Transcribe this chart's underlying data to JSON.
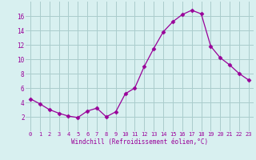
{
  "x": [
    0,
    1,
    2,
    3,
    4,
    5,
    6,
    7,
    8,
    9,
    10,
    11,
    12,
    13,
    14,
    15,
    16,
    17,
    18,
    19,
    20,
    21,
    22,
    23
  ],
  "y": [
    4.5,
    3.8,
    3.0,
    2.5,
    2.1,
    1.9,
    2.8,
    3.2,
    2.0,
    2.7,
    5.2,
    6.0,
    9.0,
    11.5,
    13.8,
    15.2,
    16.2,
    16.8,
    16.3,
    11.8,
    10.2,
    9.2,
    8.0,
    7.1
  ],
  "line_color": "#990099",
  "marker": "D",
  "marker_size": 2.5,
  "bg_color": "#d8f0f0",
  "grid_color": "#aacccc",
  "xlabel": "Windchill (Refroidissement éolien,°C)",
  "xlabel_color": "#990099",
  "tick_color": "#990099",
  "ylim": [
    0,
    18
  ],
  "xlim": [
    -0.5,
    23.5
  ],
  "yticks": [
    2,
    4,
    6,
    8,
    10,
    12,
    14,
    16
  ],
  "xticks": [
    0,
    1,
    2,
    3,
    4,
    5,
    6,
    7,
    8,
    9,
    10,
    11,
    12,
    13,
    14,
    15,
    16,
    17,
    18,
    19,
    20,
    21,
    22,
    23
  ]
}
